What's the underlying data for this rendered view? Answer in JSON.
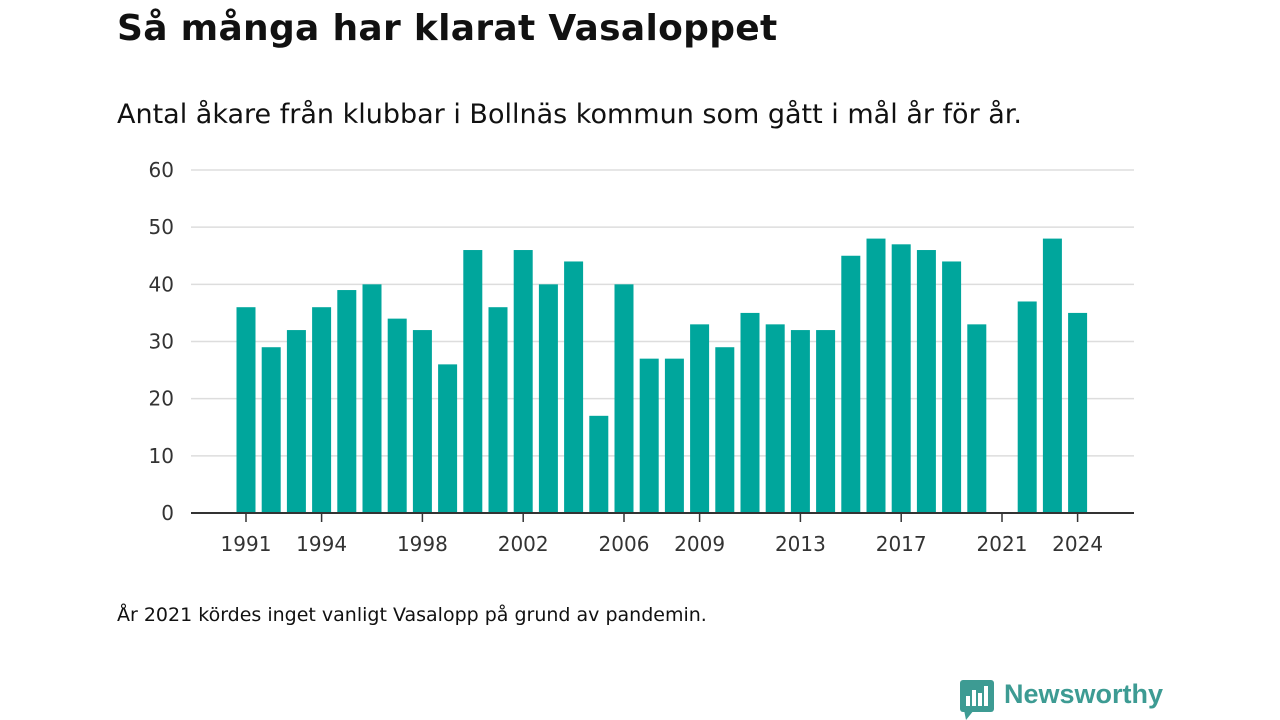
{
  "header": {
    "title": "Så många har klarat Vasaloppet",
    "subtitle": "Antal åkare från klubbar i Bollnäs kommun som gått i mål år för år."
  },
  "footer": {
    "note": "År 2021 kördes inget vanligt Vasalopp på grund av pandemin.",
    "brand_name": "Newsworthy",
    "brand_icon": "newsworthy-logo-icon"
  },
  "chart_data": {
    "type": "bar",
    "title": "Så många har klarat Vasaloppet",
    "subtitle": "Antal åkare från klubbar i Bollnäs kommun som gått i mål år för år.",
    "xlabel": "",
    "ylabel": "",
    "ylim": [
      0,
      60
    ],
    "yticks": [
      0,
      10,
      20,
      30,
      40,
      50,
      60
    ],
    "xtick_labels": [
      "1991",
      "1994",
      "1998",
      "2002",
      "2006",
      "2009",
      "2013",
      "2017",
      "2021",
      "2024"
    ],
    "grid": true,
    "legend": "none",
    "bar_color": "#00a69c",
    "categories": [
      "1991",
      "1992",
      "1993",
      "1994",
      "1995",
      "1996",
      "1997",
      "1998",
      "1999",
      "2000",
      "2001",
      "2002",
      "2003",
      "2004",
      "2005",
      "2006",
      "2007",
      "2008",
      "2009",
      "2010",
      "2011",
      "2012",
      "2013",
      "2014",
      "2015",
      "2016",
      "2017",
      "2018",
      "2019",
      "2020",
      "2021",
      "2022",
      "2023",
      "2024"
    ],
    "values": [
      36,
      29,
      32,
      36,
      39,
      40,
      34,
      32,
      26,
      46,
      36,
      46,
      40,
      44,
      17,
      40,
      27,
      27,
      33,
      29,
      35,
      33,
      32,
      32,
      45,
      48,
      47,
      46,
      44,
      33,
      null,
      37,
      48,
      35
    ]
  }
}
